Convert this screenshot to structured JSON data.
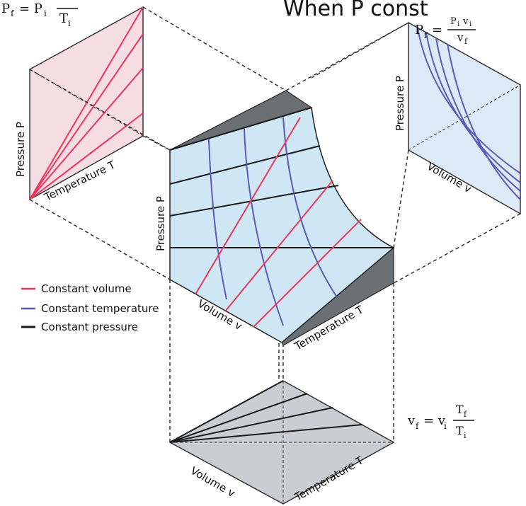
{
  "colors": {
    "constant_volume": "#e8365c",
    "constant_temperature": "#5b5ab8",
    "constant_pressure": "#1a1a1a",
    "surface_fill": "#cfe6f5",
    "pt_panel_fill": "#f6dde3",
    "pv_panel_fill": "#dce9f7",
    "vt_panel_fill": "#c9cdd4",
    "dark_face": "#6b7075"
  },
  "top_partial_text": "When P const",
  "pt_panel": {
    "formula": {
      "lhs": "P",
      "lhs_sub": "f",
      "eq": "= P",
      "rhs_sub": "i",
      "frac_num": "",
      "frac_den": "T",
      "frac_den_sub": "i"
    },
    "y_label": "Pressure P",
    "x_label": "Temperature T"
  },
  "pv_panel": {
    "formula": {
      "lhs": "P",
      "lhs_sub": "f",
      "eq": "=",
      "num": "P",
      "num_sub": "i",
      "num2": "v",
      "num2_sub": "i",
      "den": "v",
      "den_sub": "f"
    },
    "y_label": "Pressure P",
    "x_label": "Volume v"
  },
  "surface": {
    "y_label": "Pressure P",
    "v_label": "Volume v",
    "t_label": "Temperature T"
  },
  "vt_panel": {
    "formula": {
      "lhs": "v",
      "lhs_sub": "f",
      "eq": "= v",
      "rhs_sub": "i",
      "num": "T",
      "num_sub": "f",
      "den": "T",
      "den_sub": "i"
    },
    "v_label": "Volume v",
    "t_label": "Temperature T"
  },
  "legend": [
    {
      "label": "Constant volume",
      "color_key": "constant_volume"
    },
    {
      "label": "Constant temperature",
      "color_key": "constant_temperature"
    },
    {
      "label": "Constant pressure",
      "color_key": "constant_pressure"
    }
  ]
}
